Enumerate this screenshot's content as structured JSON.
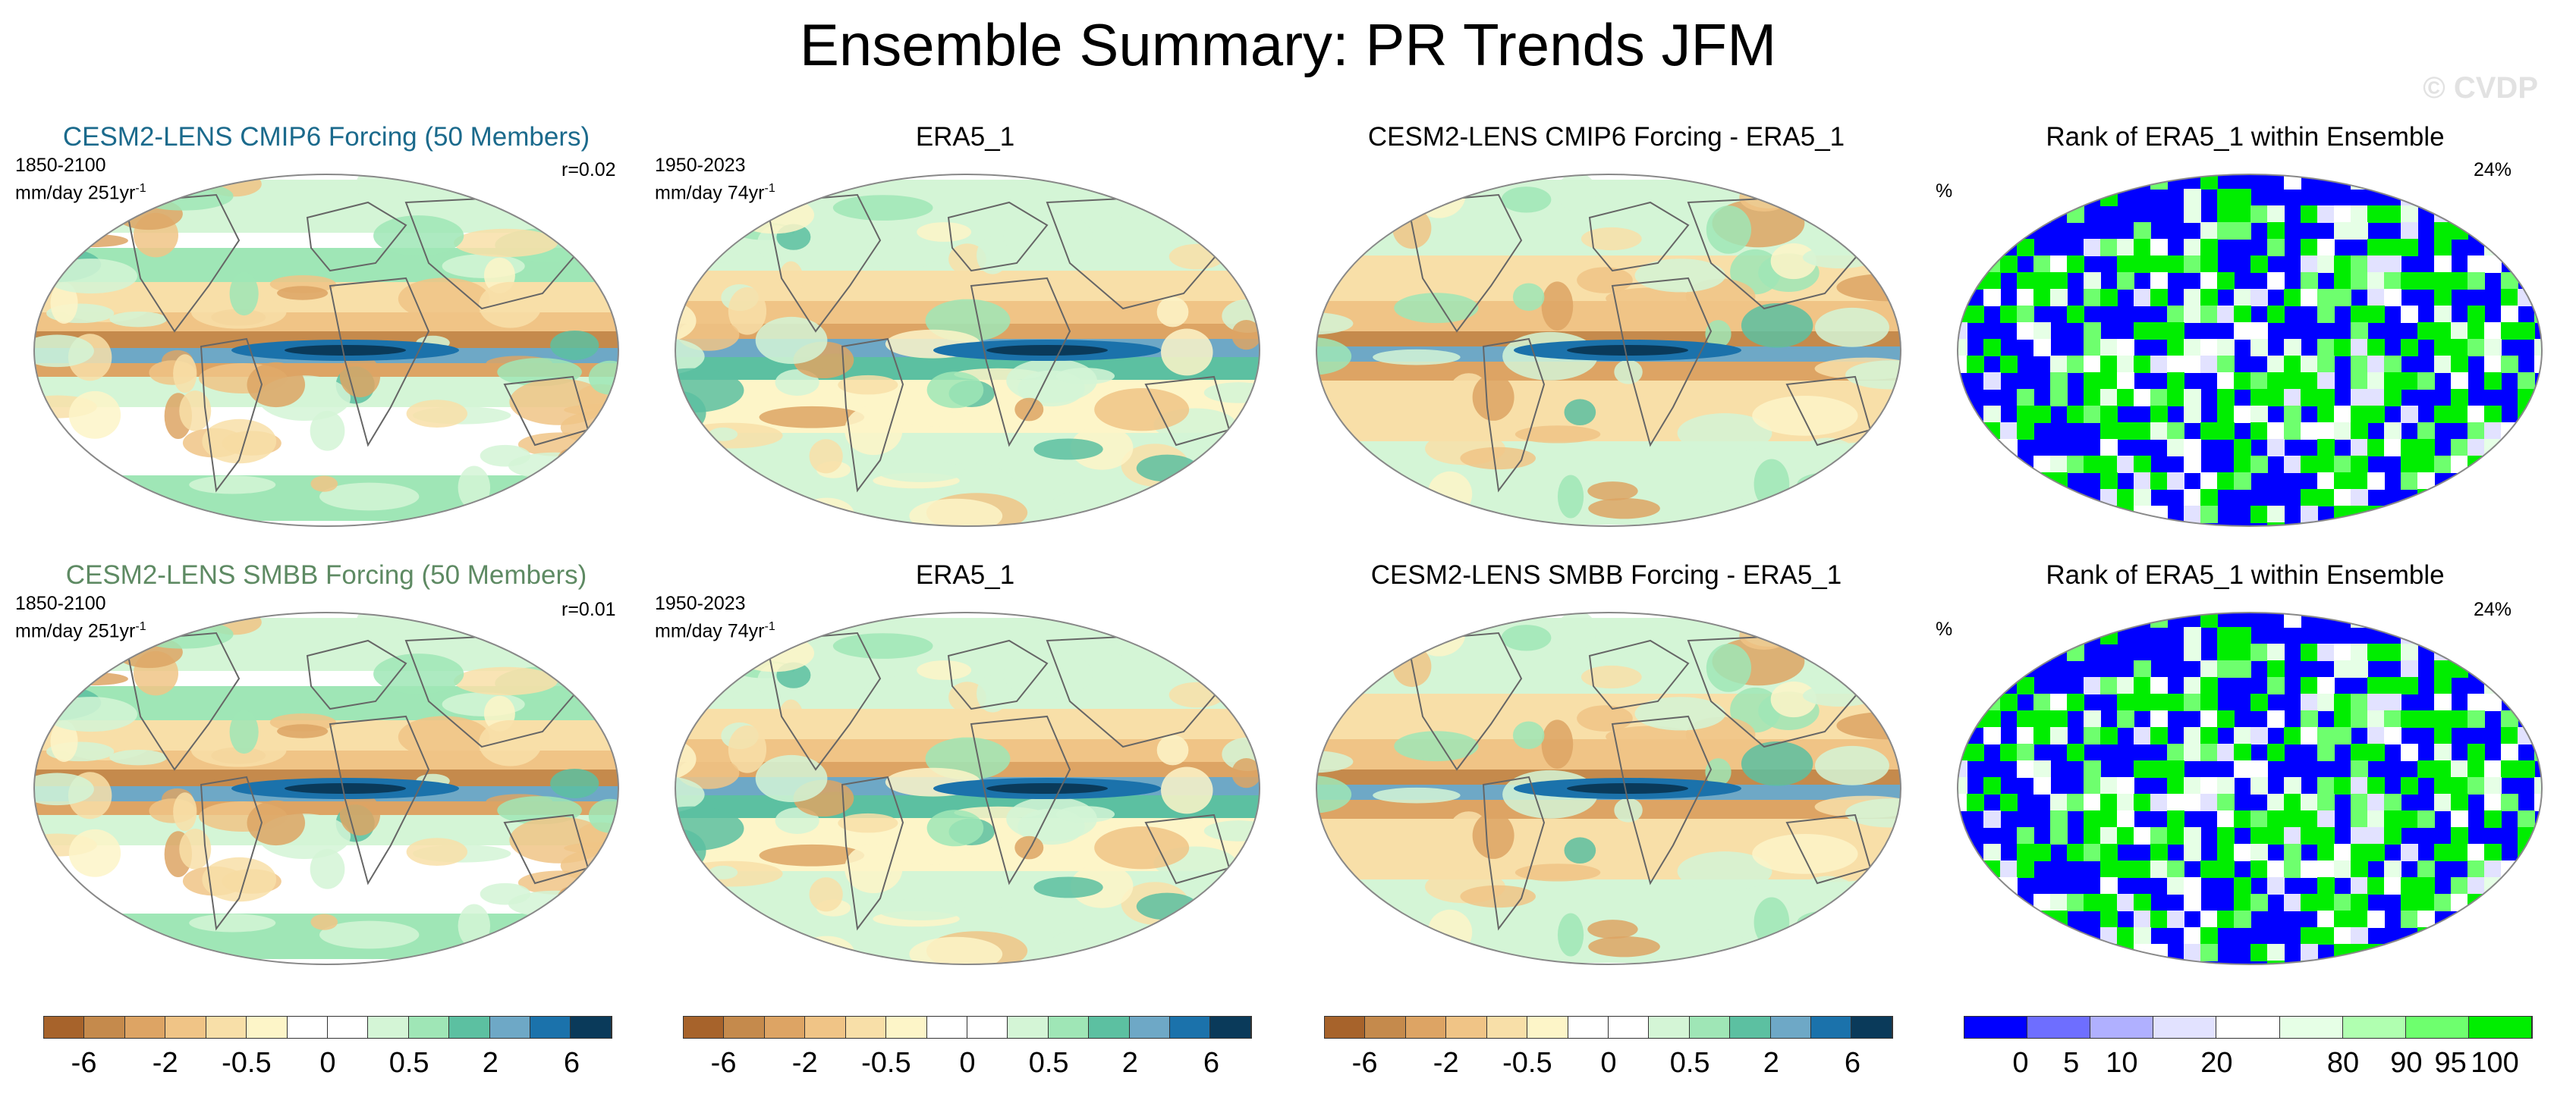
{
  "title": "Ensemble Summary: PR Trends JFM",
  "watermark": "© CVDP",
  "colors": {
    "title_cmip6": "#1b6a8c",
    "title_smbb": "#5e8a63",
    "trend_scale": [
      "#a7632b",
      "#c58a4c",
      "#dda464",
      "#f0c486",
      "#f8dfa8",
      "#fdf5c8",
      "#ffffff",
      "#ffffff",
      "#d4f5d6",
      "#9fe6b6",
      "#5cc0a1",
      "#6ea8c6",
      "#1b72ab",
      "#0a3a5a"
    ],
    "rank_scale": [
      "#0000ff",
      "#6e6eff",
      "#b0b0ff",
      "#e2e2ff",
      "#ffffff",
      "#e6ffe6",
      "#b0ffb0",
      "#6eff6e",
      "#00ee00"
    ],
    "land_outline": "#666666"
  },
  "rows": [
    {
      "panels": [
        {
          "kind": "trend",
          "title": "CESM2-LENS CMIP6 Forcing (50 Members)",
          "period": "1850-2100",
          "units": "mm/day 251yr",
          "units_exp": "-1",
          "corr": "r=0.02",
          "pattern": "model"
        },
        {
          "kind": "trend",
          "title": "ERA5_1",
          "period": "1950-2023",
          "units": "mm/day 74yr",
          "units_exp": "-1",
          "pattern": "obs"
        },
        {
          "kind": "trend",
          "title": "CESM2-LENS CMIP6 Forcing - ERA5_1",
          "pattern": "diff"
        },
        {
          "kind": "rank",
          "title": "Rank of ERA5_1 within Ensemble",
          "percent_label": "%",
          "pct": "24%",
          "pattern": "rank"
        }
      ]
    },
    {
      "panels": [
        {
          "kind": "trend",
          "title": "CESM2-LENS SMBB Forcing (50 Members)",
          "period": "1850-2100",
          "units": "mm/day 251yr",
          "units_exp": "-1",
          "corr": "r=0.01",
          "pattern": "model"
        },
        {
          "kind": "trend",
          "title": "ERA5_1",
          "period": "1950-2023",
          "units": "mm/day 74yr",
          "units_exp": "-1",
          "pattern": "obs"
        },
        {
          "kind": "trend",
          "title": "CESM2-LENS SMBB Forcing - ERA5_1",
          "pattern": "diff"
        },
        {
          "kind": "rank",
          "title": "Rank of ERA5_1 within Ensemble",
          "percent_label": "%",
          "pct": "24%",
          "pattern": "rank"
        }
      ]
    }
  ],
  "colorbars": [
    {
      "kind": "trend",
      "labels": [
        "-6",
        "-2",
        "-0.5",
        "0",
        "0.5",
        "2",
        "6"
      ]
    },
    {
      "kind": "trend",
      "labels": [
        "-6",
        "-2",
        "-0.5",
        "0",
        "0.5",
        "2",
        "6"
      ]
    },
    {
      "kind": "trend",
      "labels": [
        "-6",
        "-2",
        "-0.5",
        "0",
        "0.5",
        "2",
        "6"
      ]
    },
    {
      "kind": "rank",
      "labels": [
        "0",
        "5",
        "10",
        "20",
        "80",
        "90",
        "95",
        "100"
      ]
    }
  ]
}
